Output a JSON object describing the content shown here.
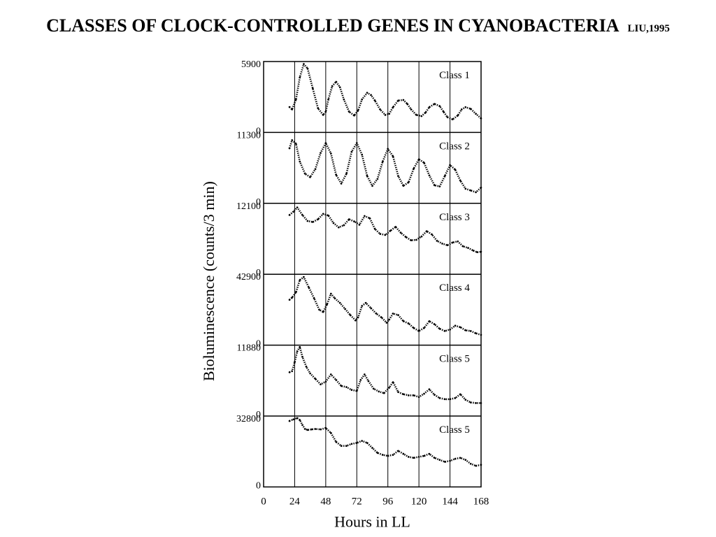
{
  "slide": {
    "title": "CLASSES OF CLOCK-CONTROLLED GENES IN CYANOBACTERIA",
    "citation": "LIU,1995"
  },
  "chart_data": {
    "type": "line",
    "xlabel": "Hours in LL",
    "ylabel": "Bioluminescence (counts/3 min)",
    "xlim": [
      0,
      168
    ],
    "x_ticks": [
      0,
      24,
      48,
      72,
      96,
      120,
      144,
      168
    ],
    "x_tick_labels": [
      "0",
      "24",
      "48",
      "72",
      "96",
      "120",
      "144",
      "168"
    ],
    "vertical_gridlines_at": [
      24,
      48,
      72,
      96,
      120,
      144
    ],
    "panels": [
      {
        "label": "Class 1",
        "ylim": [
          0,
          5900
        ],
        "ytick_labels": [
          "5900",
          "0"
        ],
        "x": [
          20,
          22,
          25,
          28,
          31,
          34,
          38,
          42,
          46,
          48,
          50,
          53,
          56,
          59,
          62,
          66,
          70,
          73,
          76,
          80,
          83,
          86,
          90,
          94,
          97,
          100,
          104,
          108,
          111,
          114,
          118,
          122,
          125,
          128,
          132,
          136,
          139,
          142,
          146,
          150,
          153,
          156,
          160,
          164,
          168
        ],
        "y": [
          1920,
          1700,
          2600,
          4600,
          5800,
          5400,
          3600,
          1800,
          1200,
          1500,
          2600,
          3800,
          4200,
          3700,
          2600,
          1500,
          1150,
          1600,
          2600,
          3200,
          3000,
          2500,
          1700,
          1200,
          1300,
          1900,
          2500,
          2550,
          2200,
          1700,
          1200,
          1100,
          1400,
          1900,
          2200,
          2000,
          1500,
          1000,
          800,
          1150,
          1700,
          1900,
          1750,
          1300,
          900
        ]
      },
      {
        "label": "Class 2",
        "ylim": [
          0,
          11300
        ],
        "ytick_labels": [
          "11300",
          "0"
        ],
        "x": [
          20,
          22,
          25,
          28,
          32,
          36,
          40,
          44,
          48,
          52,
          56,
          60,
          64,
          68,
          72,
          76,
          80,
          84,
          88,
          92,
          96,
          100,
          104,
          108,
          112,
          116,
          120,
          124,
          128,
          132,
          136,
          140,
          144,
          148,
          152,
          156,
          160,
          164,
          168
        ],
        "y": [
          8800,
          10200,
          9600,
          6500,
          4400,
          3800,
          5200,
          8000,
          9700,
          7900,
          4200,
          2700,
          4400,
          8200,
          9700,
          7700,
          4000,
          2300,
          3500,
          6500,
          8700,
          7400,
          4000,
          2300,
          2900,
          5300,
          6900,
          6300,
          4100,
          2400,
          2200,
          4000,
          5900,
          5100,
          3200,
          1800,
          1500,
          1200,
          2000
        ]
      },
      {
        "label": "Class 3",
        "ylim": [
          0,
          12100
        ],
        "ytick_labels": [
          "12100",
          "0"
        ],
        "x": [
          20,
          23,
          26,
          30,
          34,
          38,
          42,
          46,
          50,
          54,
          58,
          62,
          66,
          70,
          74,
          78,
          82,
          86,
          90,
          94,
          98,
          102,
          106,
          110,
          114,
          118,
          122,
          126,
          130,
          134,
          138,
          142,
          146,
          150,
          154,
          158,
          162,
          165,
          168
        ],
        "y": [
          10200,
          10800,
          11600,
          10200,
          9100,
          8900,
          9400,
          10400,
          10100,
          8700,
          7900,
          8300,
          9400,
          9000,
          8400,
          10000,
          9600,
          7600,
          6700,
          6500,
          7300,
          8000,
          6900,
          6100,
          5500,
          5600,
          6200,
          7200,
          6600,
          5400,
          4900,
          4600,
          5100,
          5300,
          4400,
          4100,
          3600,
          3300,
          3400
        ]
      },
      {
        "label": "Class 4",
        "ylim": [
          0,
          42900
        ],
        "ytick_labels": [
          "42900",
          "0"
        ],
        "x": [
          20,
          22,
          25,
          28,
          31,
          35,
          39,
          43,
          46,
          49,
          52,
          55,
          59,
          63,
          67,
          71,
          73,
          76,
          79,
          83,
          87,
          91,
          95,
          97,
          100,
          104,
          108,
          112,
          116,
          120,
          124,
          128,
          132,
          136,
          140,
          144,
          148,
          152,
          156,
          160,
          164,
          168
        ],
        "y": [
          27000,
          28500,
          32000,
          40000,
          42000,
          35000,
          28000,
          20500,
          19000,
          24000,
          31000,
          28000,
          25000,
          21000,
          17000,
          13500,
          15500,
          23000,
          25000,
          21500,
          18000,
          15500,
          12000,
          14000,
          18000,
          17000,
          13000,
          11500,
          8500,
          6500,
          8500,
          13000,
          11000,
          8000,
          6500,
          7500,
          10000,
          9000,
          7000,
          6500,
          5000,
          4000
        ]
      },
      {
        "label": "Class 5",
        "ylim": [
          0,
          11880
        ],
        "ytick_labels": [
          "11880",
          "0"
        ],
        "x": [
          20,
          22,
          24,
          26,
          28,
          30,
          33,
          36,
          40,
          44,
          48,
          52,
          56,
          60,
          64,
          68,
          72,
          75,
          78,
          81,
          85,
          89,
          93,
          97,
          100,
          104,
          108,
          112,
          116,
          120,
          124,
          128,
          132,
          136,
          140,
          144,
          148,
          152,
          156,
          160,
          164,
          168
        ],
        "y": [
          7200,
          7400,
          9000,
          11000,
          11800,
          10000,
          8200,
          7000,
          6000,
          5000,
          5500,
          6800,
          5800,
          4700,
          4500,
          4000,
          3800,
          5800,
          6800,
          5600,
          4200,
          3700,
          3400,
          4400,
          5400,
          3600,
          3200,
          3000,
          3000,
          2700,
          3300,
          4100,
          3100,
          2500,
          2300,
          2300,
          2500,
          3200,
          2200,
          1700,
          1600,
          1600
        ]
      },
      {
        "label": "Class 5",
        "ylim": [
          0,
          32800
        ],
        "ytick_labels": [
          "32800",
          "0"
        ],
        "x": [
          20,
          23,
          26,
          28,
          30,
          32,
          34,
          37,
          40,
          44,
          48,
          52,
          56,
          60,
          64,
          68,
          72,
          76,
          80,
          84,
          88,
          92,
          96,
          100,
          104,
          108,
          112,
          116,
          120,
          124,
          128,
          132,
          136,
          140,
          144,
          148,
          152,
          156,
          160,
          164,
          168
        ],
        "y": [
          31000,
          31800,
          32500,
          31500,
          29000,
          27000,
          26500,
          26800,
          27000,
          26800,
          27500,
          25000,
          20500,
          18500,
          18500,
          19500,
          20000,
          21000,
          20000,
          17500,
          15000,
          14000,
          13500,
          14000,
          16000,
          14500,
          13000,
          12500,
          13000,
          13500,
          14500,
          12500,
          11500,
          10500,
          11000,
          12000,
          12500,
          11500,
          9500,
          8500,
          9000
        ]
      }
    ]
  }
}
